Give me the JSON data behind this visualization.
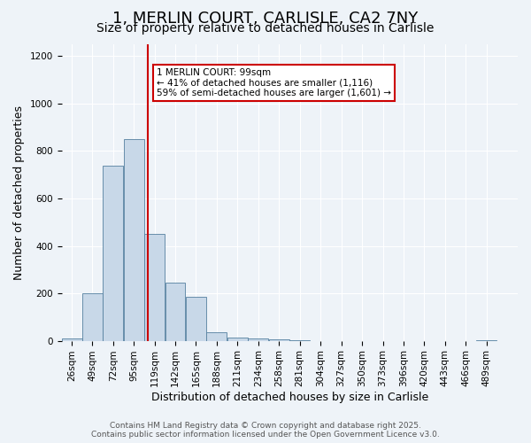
{
  "title": "1, MERLIN COURT, CARLISLE, CA2 7NY",
  "subtitle": "Size of property relative to detached houses in Carlisle",
  "xlabel": "Distribution of detached houses by size in Carlisle",
  "ylabel": "Number of detached properties",
  "bar_color": "#c8d8e8",
  "bar_edge_color": "#5580a0",
  "background_color": "#eef3f8",
  "plot_bg_color": "#eef3f8",
  "grid_color": "#ffffff",
  "vline_x": 99,
  "vline_color": "#cc0000",
  "annotation_text": "1 MERLIN COURT: 99sqm\n← 41% of detached houses are smaller (1,116)\n59% of semi-detached houses are larger (1,601) →",
  "annotation_box_color": "#ffffff",
  "annotation_box_edge": "#cc0000",
  "bins_left_edges": [
    3.5,
    26,
    49,
    72,
    95,
    118,
    141,
    164,
    187,
    210,
    233,
    256,
    279,
    302,
    325,
    348,
    371,
    394,
    417,
    440,
    463,
    486
  ],
  "bin_width": 23,
  "bar_heights": [
    10,
    200,
    740,
    850,
    450,
    245,
    185,
    35,
    15,
    10,
    5,
    1,
    0,
    0,
    0,
    0,
    0,
    0,
    0,
    0,
    1,
    0
  ],
  "tick_labels": [
    "26sqm",
    "49sqm",
    "72sqm",
    "95sqm",
    "119sqm",
    "142sqm",
    "165sqm",
    "188sqm",
    "211sqm",
    "234sqm",
    "258sqm",
    "281sqm",
    "304sqm",
    "327sqm",
    "350sqm",
    "373sqm",
    "396sqm",
    "420sqm",
    "443sqm",
    "466sqm",
    "489sqm"
  ],
  "ylim": [
    0,
    1250
  ],
  "yticks": [
    0,
    200,
    400,
    600,
    800,
    1000,
    1200
  ],
  "footer_text": "Contains HM Land Registry data © Crown copyright and database right 2025.\nContains public sector information licensed under the Open Government Licence v3.0.",
  "title_fontsize": 13,
  "subtitle_fontsize": 10,
  "axis_label_fontsize": 9,
  "tick_fontsize": 7.5,
  "footer_fontsize": 6.5
}
